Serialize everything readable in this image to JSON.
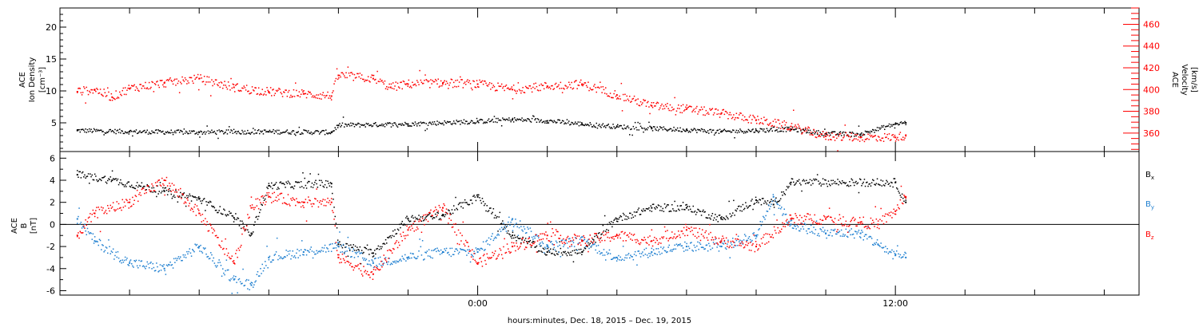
{
  "chart_data": [
    {
      "type": "scatter",
      "panel": "top",
      "ylabel_left": [
        "ACE",
        "Ion Density",
        "[cm⁻³]"
      ],
      "ylabel_right": [
        "ACE",
        "Velocity",
        "[km/s]"
      ],
      "ylim_left": [
        0.5,
        23
      ],
      "ylim_right": [
        343,
        475
      ],
      "yticks_left": [
        {
          "value": 5,
          "label": "5"
        },
        {
          "value": 10,
          "label": "10"
        },
        {
          "value": 15,
          "label": "15"
        },
        {
          "value": 20,
          "label": "20"
        }
      ],
      "yticks_right": [
        {
          "value": 360,
          "label": "360"
        },
        {
          "value": 380,
          "label": "380"
        },
        {
          "value": 400,
          "label": "400"
        },
        {
          "value": 420,
          "label": "420"
        },
        {
          "value": 440,
          "label": "440"
        },
        {
          "value": 460,
          "label": "460"
        }
      ],
      "series": [
        {
          "name": "Ion Density",
          "color": "#000000",
          "axis": "left",
          "noise": 0.35,
          "x": [
            -11.5,
            -10,
            -8,
            -6,
            -4.2,
            -4,
            -2,
            0,
            1,
            2,
            3,
            4,
            5,
            6,
            7,
            8,
            9,
            10,
            11,
            12,
            12.3
          ],
          "values": [
            3.8,
            3.6,
            3.5,
            3.6,
            3.5,
            4.6,
            4.8,
            5.2,
            5.5,
            5.3,
            4.8,
            4.4,
            4.1,
            3.9,
            3.6,
            3.8,
            4.0,
            3.3,
            3.2,
            4.8,
            5.0
          ]
        },
        {
          "name": "Velocity",
          "color": "#ff0000",
          "axis": "right",
          "noise": 4,
          "x": [
            -11.5,
            -11,
            -10.5,
            -10,
            -9,
            -8,
            -7,
            -6,
            -5,
            -4.2,
            -4,
            -3,
            -2.5,
            -2,
            -1,
            0,
            1,
            2,
            3,
            4,
            5,
            6,
            7,
            8,
            9,
            10,
            11,
            12,
            12.3
          ],
          "values": [
            398,
            400,
            393,
            401,
            406,
            410,
            402,
            398,
            396,
            394,
            413,
            410,
            402,
            405,
            406,
            405,
            400,
            403,
            405,
            395,
            385,
            382,
            378,
            372,
            366,
            357,
            356,
            356,
            358
          ]
        }
      ]
    },
    {
      "type": "scatter",
      "panel": "bottom",
      "ylabel_left": [
        "ACE",
        "B",
        "[nT]"
      ],
      "ylim": [
        -6.4,
        6.6
      ],
      "yticks": [
        {
          "value": -6,
          "label": "-6"
        },
        {
          "value": -4,
          "label": "-4"
        },
        {
          "value": -2,
          "label": "-2"
        },
        {
          "value": 0,
          "label": "0"
        },
        {
          "value": 2,
          "label": "2"
        },
        {
          "value": 4,
          "label": "4"
        },
        {
          "value": 6,
          "label": "6"
        }
      ],
      "zero_line": true,
      "series": [
        {
          "name": "Bx",
          "label_main": "B",
          "label_sub": "x",
          "color": "#000000",
          "noise": 0.35,
          "x": [
            -11.5,
            -10.5,
            -9,
            -8,
            -7,
            -6.5,
            -6,
            -4.2,
            -4,
            -3,
            -2,
            -1,
            0,
            1,
            2,
            3,
            4,
            5,
            6,
            7,
            8,
            8.5,
            9,
            12,
            12.3
          ],
          "values": [
            4.5,
            4.0,
            3.0,
            2.3,
            0.6,
            -0.8,
            3.5,
            3.7,
            -1.8,
            -2.6,
            0.5,
            0.8,
            2.5,
            -1.0,
            -2.5,
            -2.5,
            0.5,
            1.5,
            1.5,
            0.5,
            2.2,
            1.8,
            3.8,
            3.8,
            2.0
          ]
        },
        {
          "name": "By",
          "label_main": "B",
          "label_sub": "y",
          "color": "#1e7fd0",
          "noise": 0.45,
          "x": [
            -11.5,
            -11,
            -10,
            -9,
            -8,
            -7,
            -6.5,
            -6,
            -5,
            -4,
            -3,
            -2,
            -1,
            0,
            1,
            2,
            3,
            4,
            5,
            6,
            7,
            8,
            8.5,
            9,
            10,
            11,
            11.5,
            12,
            12.3
          ],
          "values": [
            0.5,
            -1.5,
            -3.5,
            -4.0,
            -2.0,
            -5.0,
            -5.5,
            -3.0,
            -2.5,
            -2.0,
            -3.5,
            -3.0,
            -2.5,
            -2.5,
            0.5,
            -2.0,
            -1.5,
            -3.0,
            -2.5,
            -2.0,
            -2.0,
            -1.0,
            2.5,
            0.0,
            -0.8,
            -0.8,
            -1.8,
            -2.8,
            -3.0
          ]
        },
        {
          "name": "Bz",
          "label_main": "B",
          "label_sub": "z",
          "color": "#ff0000",
          "noise": 0.5,
          "x": [
            -11.5,
            -11,
            -10,
            -9,
            -8,
            -7,
            -6.5,
            -6,
            -5,
            -4.2,
            -4,
            -3,
            -2,
            -1,
            0,
            1,
            2,
            3,
            4,
            5,
            6,
            7,
            8,
            9,
            10,
            11,
            11.5,
            12,
            12.3
          ],
          "values": [
            -1.0,
            1.0,
            2.0,
            4.0,
            1.0,
            -3.5,
            1.5,
            2.5,
            2.0,
            2.0,
            -3.0,
            -4.5,
            -0.5,
            1.5,
            -3.5,
            -2.0,
            -1.0,
            -1.5,
            -1.0,
            -1.5,
            -0.5,
            -1.5,
            -2.0,
            0.5,
            0.5,
            0.2,
            0.0,
            1.2,
            2.5
          ]
        }
      ]
    }
  ],
  "xaxis": {
    "xlim": [
      -12,
      19
    ],
    "major_ticks": [
      {
        "value": 0,
        "label": "0:00"
      },
      {
        "value": 12,
        "label": "12:00"
      }
    ],
    "minor_step_hours": 2,
    "title": "hours:minutes, Dec. 18, 2015 – Dec. 19, 2015"
  }
}
